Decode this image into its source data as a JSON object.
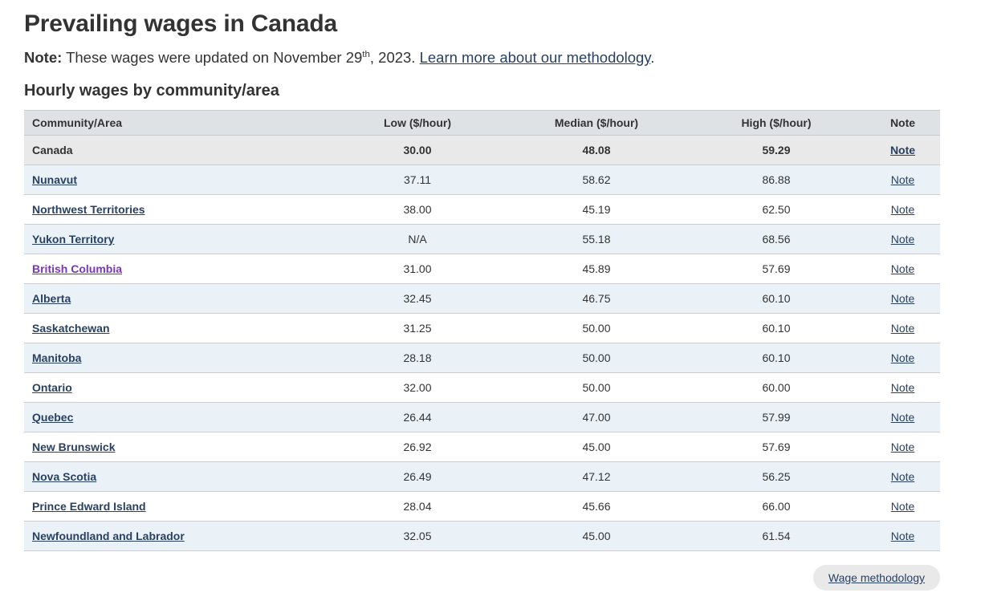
{
  "page": {
    "title": "Prevailing wages in Canada",
    "note": {
      "label": "Note:",
      "text_before": " These wages were updated on November 29",
      "superscript": "th",
      "text_middle": ", 2023. ",
      "link_label": "Learn more about our methodology",
      "text_after": "."
    },
    "section_heading": "Hourly wages by community/area"
  },
  "wage_table": {
    "headers": {
      "area": "Community/Area",
      "low": "Low ($/hour)",
      "median": "Median ($/hour)",
      "high": "High ($/hour)",
      "note": "Note"
    },
    "note_link_label": "Note",
    "rows": [
      {
        "area": "Canada",
        "low": "30.00",
        "median": "48.08",
        "high": "59.29",
        "link": false,
        "summary": true,
        "visited": false
      },
      {
        "area": "Nunavut",
        "low": "37.11",
        "median": "58.62",
        "high": "86.88",
        "link": true,
        "summary": false,
        "visited": false
      },
      {
        "area": "Northwest Territories",
        "low": "38.00",
        "median": "45.19",
        "high": "62.50",
        "link": true,
        "summary": false,
        "visited": false
      },
      {
        "area": "Yukon Territory",
        "low": "N/A",
        "median": "55.18",
        "high": "68.56",
        "link": true,
        "summary": false,
        "visited": false
      },
      {
        "area": "British Columbia",
        "low": "31.00",
        "median": "45.89",
        "high": "57.69",
        "link": true,
        "summary": false,
        "visited": true
      },
      {
        "area": "Alberta",
        "low": "32.45",
        "median": "46.75",
        "high": "60.10",
        "link": true,
        "summary": false,
        "visited": false
      },
      {
        "area": "Saskatchewan",
        "low": "31.25",
        "median": "50.00",
        "high": "60.10",
        "link": true,
        "summary": false,
        "visited": false
      },
      {
        "area": "Manitoba",
        "low": "28.18",
        "median": "50.00",
        "high": "60.10",
        "link": true,
        "summary": false,
        "visited": false
      },
      {
        "area": "Ontario",
        "low": "32.00",
        "median": "50.00",
        "high": "60.00",
        "link": true,
        "summary": false,
        "visited": false
      },
      {
        "area": "Quebec",
        "low": "26.44",
        "median": "47.00",
        "high": "57.99",
        "link": true,
        "summary": false,
        "visited": false
      },
      {
        "area": "New Brunswick",
        "low": "26.92",
        "median": "45.00",
        "high": "57.69",
        "link": true,
        "summary": false,
        "visited": false
      },
      {
        "area": "Nova Scotia",
        "low": "26.49",
        "median": "47.12",
        "high": "56.25",
        "link": true,
        "summary": false,
        "visited": false
      },
      {
        "area": "Prince Edward Island",
        "low": "28.04",
        "median": "45.66",
        "high": "66.00",
        "link": true,
        "summary": false,
        "visited": false
      },
      {
        "area": "Newfoundland and Labrador",
        "low": "32.05",
        "median": "45.00",
        "high": "61.54",
        "link": true,
        "summary": false,
        "visited": false
      }
    ]
  },
  "footer": {
    "wage_methodology_label": "Wage methodology"
  },
  "colors": {
    "text": "#333333",
    "link": "#284162",
    "visited_link": "#7834bc",
    "header_row_bg": "#dfe2e5",
    "summary_row_bg": "#e9e9e9",
    "stripe_row_bg": "#eaf2f8",
    "row_border": "#cbcdd0",
    "button_bg": "#e9e9e9"
  }
}
